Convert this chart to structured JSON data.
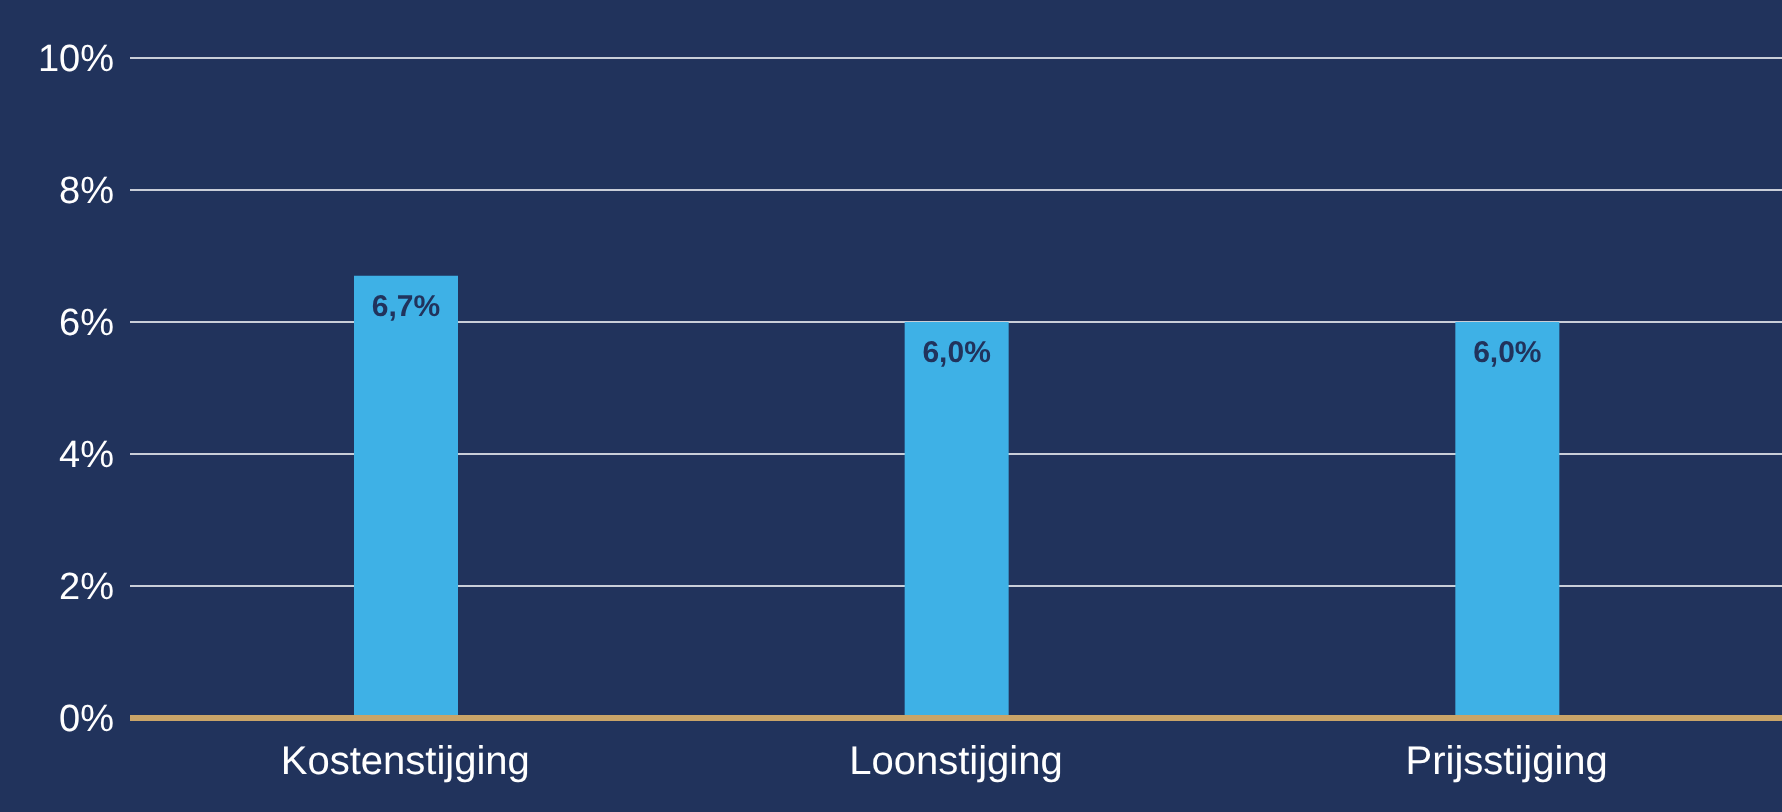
{
  "chart_data": {
    "type": "bar",
    "categories": [
      "Kostenstijging",
      "Loonstijging",
      "Prijsstijging"
    ],
    "values": [
      6.7,
      6.0,
      6.0
    ],
    "color": "#3eb1e6",
    "value_labels": [
      "6,7%",
      "6,0%",
      "6,0%"
    ],
    "ylim": [
      0,
      10
    ],
    "yticks": [
      {
        "value": 0,
        "label": "0%"
      },
      {
        "value": 2,
        "label": "2%"
      },
      {
        "value": 4,
        "label": "4%"
      },
      {
        "value": 6,
        "label": "6%"
      },
      {
        "value": 8,
        "label": "8%"
      },
      {
        "value": 10,
        "label": "10%"
      }
    ],
    "grid": "y",
    "legend": false
  }
}
